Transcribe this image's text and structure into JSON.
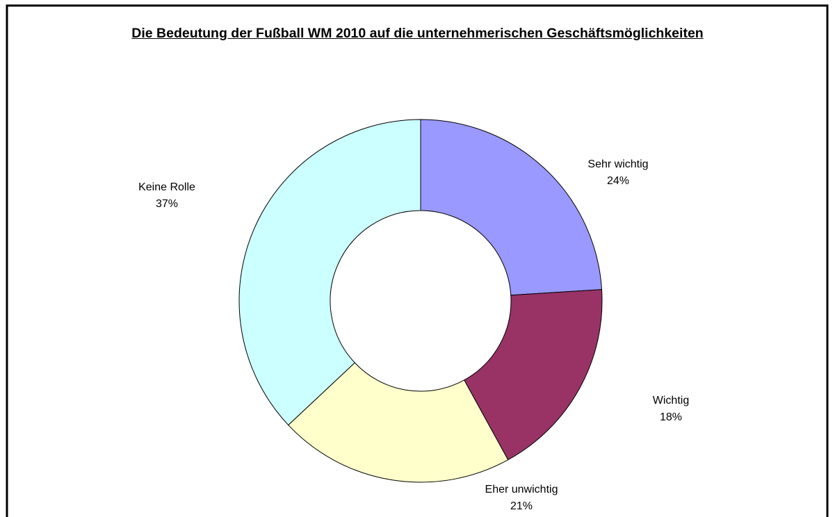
{
  "chart_data": {
    "type": "donut",
    "title": "Die Bedeutung der Fußball WM 2010 auf die unternehmerischen Geschäftsmöglichkeiten",
    "categories": [
      "Sehr wichtig",
      "Wichtig",
      "Eher unwichtig",
      "Keine Rolle"
    ],
    "values": [
      24,
      18,
      21,
      37
    ],
    "value_labels": [
      "24%",
      "18%",
      "21%",
      "37%"
    ],
    "colors": [
      "#9999ff",
      "#993366",
      "#ffffcc",
      "#ccffff"
    ]
  }
}
